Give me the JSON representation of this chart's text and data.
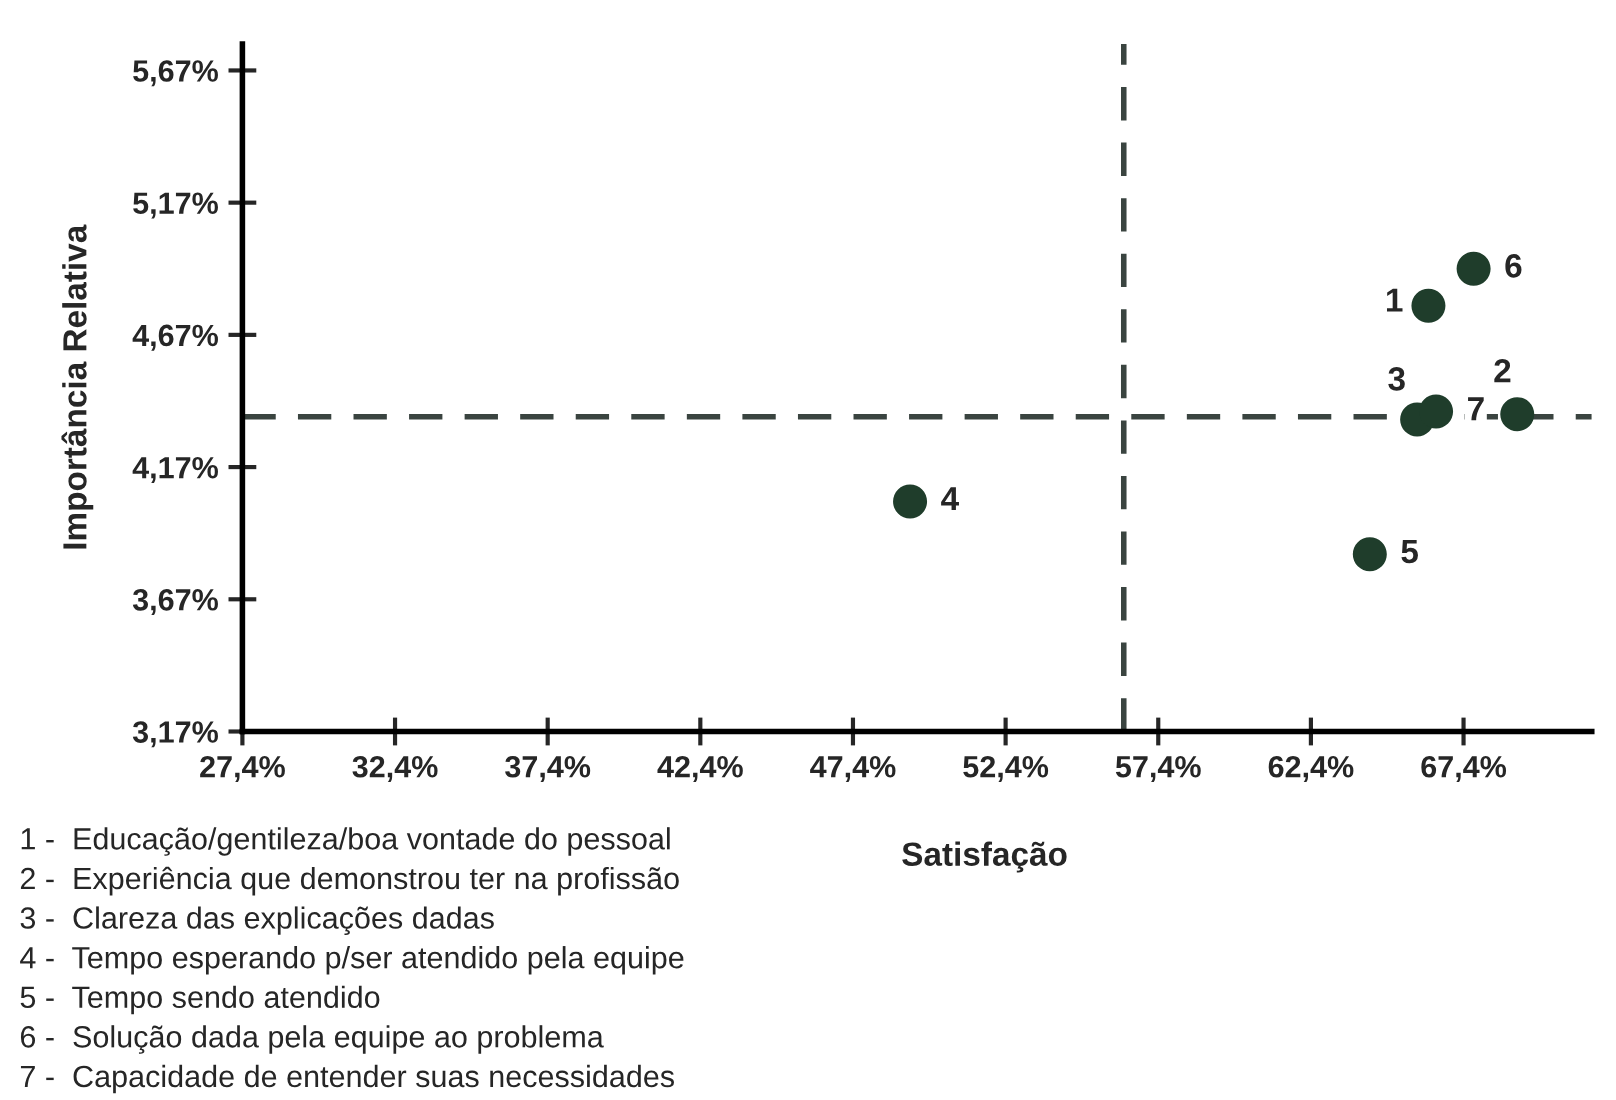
{
  "chart_data": {
    "type": "scatter",
    "xlabel": "Satisfação",
    "ylabel": "Importância Relativa",
    "series": [
      {
        "color": "#1f3d2b",
        "x": [
          66.25,
          69.16,
          65.88,
          49.27,
          64.33,
          67.73,
          66.5
        ],
        "values": [
          4.78,
          4.37,
          4.35,
          4.04,
          3.84,
          4.92,
          4.38
        ]
      }
    ],
    "marker": "circle",
    "xlim": [
      27.4,
      71.6
    ],
    "ylim": [
      3.17,
      5.77
    ],
    "xticks": [
      {
        "value": 27.4,
        "label": "27,4%"
      },
      {
        "value": 32.4,
        "label": "32,4%"
      },
      {
        "value": 37.4,
        "label": "37,4%"
      },
      {
        "value": 42.4,
        "label": "42,4%"
      },
      {
        "value": 47.4,
        "label": "47,4%"
      },
      {
        "value": 52.4,
        "label": "52,4%"
      },
      {
        "value": 57.4,
        "label": "57,4%"
      },
      {
        "value": 62.4,
        "label": "62,4%"
      },
      {
        "value": 67.4,
        "label": "67,4%"
      }
    ],
    "yticks": [
      {
        "value": 3.17,
        "label": "3,17%"
      },
      {
        "value": 3.67,
        "label": "3,67%"
      },
      {
        "value": 4.17,
        "label": "4,17%"
      },
      {
        "value": 4.67,
        "label": "4,67%"
      },
      {
        "value": 5.17,
        "label": "5,17%"
      },
      {
        "value": 5.67,
        "label": "5,67%"
      }
    ],
    "ref_lines": [
      {
        "axis": "y",
        "value": 4.36,
        "color": "#3a4440",
        "line_style": "dashed"
      },
      {
        "axis": "x",
        "value": 56.27,
        "color": "#3a4440",
        "line_style": "dashed"
      }
    ],
    "grid": false,
    "legend": false,
    "annotations": [
      {
        "text": "1",
        "x": 66.25,
        "y": 4.78
      },
      {
        "text": "2",
        "x": 69.16,
        "y": 4.37
      },
      {
        "text": "3",
        "x": 65.88,
        "y": 4.35
      },
      {
        "text": "4",
        "x": 49.27,
        "y": 4.04
      },
      {
        "text": "5",
        "x": 64.33,
        "y": 3.84
      },
      {
        "text": "6",
        "x": 67.73,
        "y": 4.92
      },
      {
        "text": "7",
        "x": 66.5,
        "y": 4.38
      },
      "1 -  Educação/gentileza/boa vontade do pessoal",
      "2 -  Experiência que demonstrou ter na profissão",
      "3 -  Clareza das explicações dadas",
      "4 -  Tempo esperando p/ser atendido pela equipe",
      "5 -  Tempo sendo atendido",
      "6 -  Solução dada pela equipe ao problema",
      "7 -  Capacidade de entender suas necessidades"
    ]
  }
}
